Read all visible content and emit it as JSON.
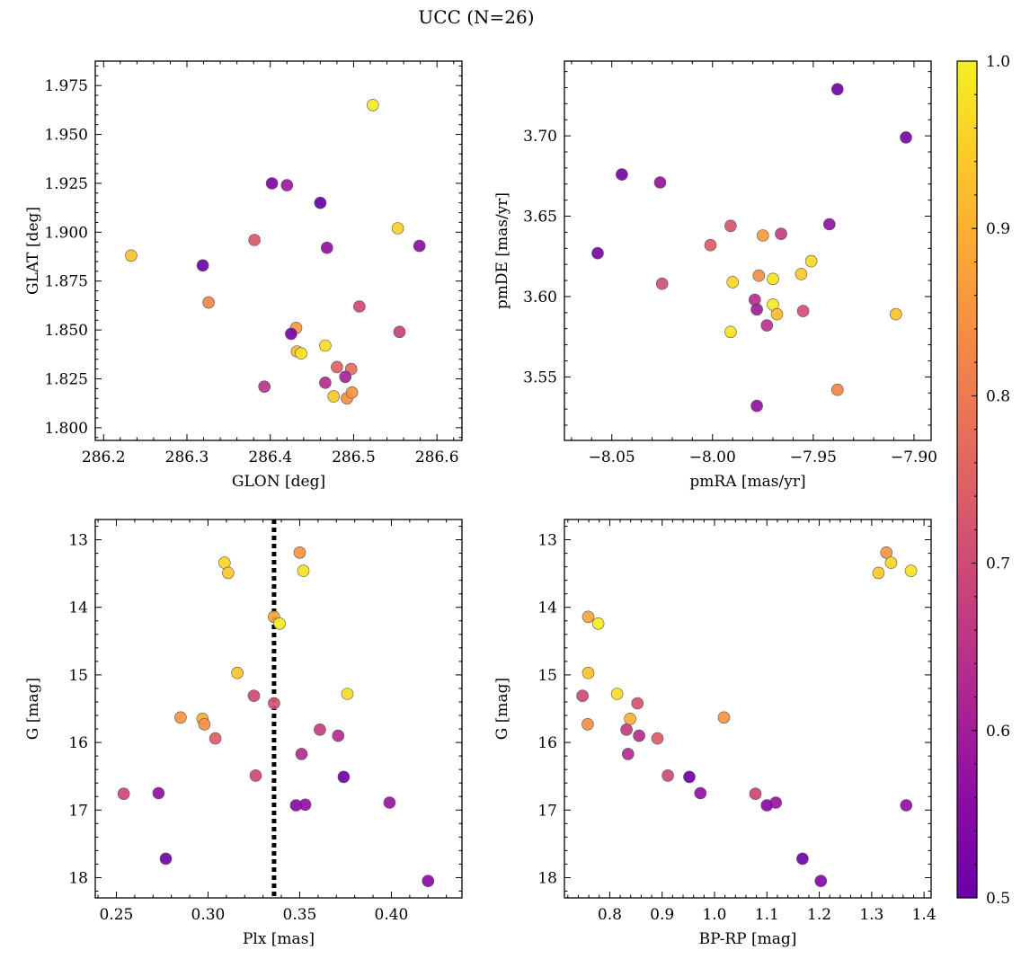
{
  "title": "UCC (N=26)",
  "colorbar": {
    "range": [
      0.5,
      1.0
    ],
    "ticks": [
      0.5,
      0.6,
      0.7,
      0.8,
      0.9,
      1.0
    ],
    "ticklabels": [
      "0.5",
      "0.6",
      "0.7",
      "0.8",
      "0.9",
      "1.0"
    ],
    "colormap": "plasma"
  },
  "chart_data": [
    {
      "type": "scatter",
      "xlabel": "GLON [deg]",
      "ylabel": "GLAT [deg]",
      "xlim": [
        286.19,
        286.63
      ],
      "ylim": [
        1.7935,
        1.9875
      ],
      "xticks": [
        286.2,
        286.3,
        286.4,
        286.5,
        286.6
      ],
      "xticklabels": [
        "286.2",
        "286.3",
        "286.4",
        "286.5",
        "286.6"
      ],
      "yticks": [
        1.8,
        1.825,
        1.85,
        1.875,
        1.9,
        1.925,
        1.95,
        1.975
      ],
      "yticklabels": [
        "1.800",
        "1.825",
        "1.850",
        "1.875",
        "1.900",
        "1.925",
        "1.950",
        "1.975"
      ],
      "points": [
        {
          "x": 286.523,
          "y": 1.965,
          "c": 0.99
        },
        {
          "x": 286.402,
          "y": 1.925,
          "c": 0.53
        },
        {
          "x": 286.42,
          "y": 1.924,
          "c": 0.59
        },
        {
          "x": 286.46,
          "y": 1.915,
          "c": 0.5
        },
        {
          "x": 286.233,
          "y": 1.888,
          "c": 0.93
        },
        {
          "x": 286.319,
          "y": 1.883,
          "c": 0.51
        },
        {
          "x": 286.381,
          "y": 1.896,
          "c": 0.73
        },
        {
          "x": 286.468,
          "y": 1.892,
          "c": 0.57
        },
        {
          "x": 286.553,
          "y": 1.902,
          "c": 0.95
        },
        {
          "x": 286.579,
          "y": 1.893,
          "c": 0.56
        },
        {
          "x": 286.326,
          "y": 1.864,
          "c": 0.82
        },
        {
          "x": 286.507,
          "y": 1.862,
          "c": 0.7
        },
        {
          "x": 286.431,
          "y": 1.851,
          "c": 0.86
        },
        {
          "x": 286.425,
          "y": 1.848,
          "c": 0.52
        },
        {
          "x": 286.555,
          "y": 1.849,
          "c": 0.68
        },
        {
          "x": 286.432,
          "y": 1.839,
          "c": 0.91
        },
        {
          "x": 286.437,
          "y": 1.838,
          "c": 0.98
        },
        {
          "x": 286.466,
          "y": 1.842,
          "c": 0.97
        },
        {
          "x": 286.48,
          "y": 1.831,
          "c": 0.75
        },
        {
          "x": 286.497,
          "y": 1.83,
          "c": 0.77
        },
        {
          "x": 286.466,
          "y": 1.823,
          "c": 0.63
        },
        {
          "x": 286.49,
          "y": 1.826,
          "c": 0.61
        },
        {
          "x": 286.393,
          "y": 1.821,
          "c": 0.65
        },
        {
          "x": 286.476,
          "y": 1.816,
          "c": 0.94
        },
        {
          "x": 286.492,
          "y": 1.815,
          "c": 0.84
        },
        {
          "x": 286.498,
          "y": 1.818,
          "c": 0.85
        }
      ]
    },
    {
      "type": "scatter",
      "xlabel": "pmRA [mas/yr]",
      "ylabel": "pmDE [mas/yr]",
      "xlim": [
        -8.0735,
        -7.8915
      ],
      "ylim": [
        3.5105,
        3.7465
      ],
      "xticks": [
        -8.05,
        -8.0,
        -7.95,
        -7.9
      ],
      "xticklabels": [
        "−8.05",
        "−8.00",
        "−7.95",
        "−7.90"
      ],
      "yticks": [
        3.55,
        3.6,
        3.65,
        3.7
      ],
      "yticklabels": [
        "3.55",
        "3.60",
        "3.65",
        "3.70"
      ],
      "points": [
        {
          "x": -7.938,
          "y": 3.729,
          "c": 0.51
        },
        {
          "x": -7.904,
          "y": 3.699,
          "c": 0.53
        },
        {
          "x": -8.045,
          "y": 3.676,
          "c": 0.52
        },
        {
          "x": -8.026,
          "y": 3.671,
          "c": 0.58
        },
        {
          "x": -7.942,
          "y": 3.645,
          "c": 0.57
        },
        {
          "x": -7.991,
          "y": 3.644,
          "c": 0.72
        },
        {
          "x": -7.966,
          "y": 3.639,
          "c": 0.67
        },
        {
          "x": -7.975,
          "y": 3.638,
          "c": 0.86
        },
        {
          "x": -8.001,
          "y": 3.632,
          "c": 0.74
        },
        {
          "x": -8.057,
          "y": 3.627,
          "c": 0.53
        },
        {
          "x": -7.951,
          "y": 3.622,
          "c": 0.96
        },
        {
          "x": -7.956,
          "y": 3.614,
          "c": 0.94
        },
        {
          "x": -7.977,
          "y": 3.613,
          "c": 0.84
        },
        {
          "x": -7.97,
          "y": 3.611,
          "c": 0.98
        },
        {
          "x": -7.99,
          "y": 3.609,
          "c": 0.96
        },
        {
          "x": -8.025,
          "y": 3.608,
          "c": 0.71
        },
        {
          "x": -7.979,
          "y": 3.598,
          "c": 0.64
        },
        {
          "x": -7.978,
          "y": 3.592,
          "c": 0.6
        },
        {
          "x": -7.97,
          "y": 3.595,
          "c": 0.99
        },
        {
          "x": -7.968,
          "y": 3.589,
          "c": 0.92
        },
        {
          "x": -7.955,
          "y": 3.591,
          "c": 0.71
        },
        {
          "x": -7.973,
          "y": 3.582,
          "c": 0.65
        },
        {
          "x": -7.909,
          "y": 3.589,
          "c": 0.93
        },
        {
          "x": -7.991,
          "y": 3.578,
          "c": 0.98
        },
        {
          "x": -7.938,
          "y": 3.542,
          "c": 0.82
        },
        {
          "x": -7.978,
          "y": 3.532,
          "c": 0.57
        }
      ]
    },
    {
      "type": "scatter",
      "xlabel": "Plx [mas]",
      "ylabel": "G [mag]",
      "xlim": [
        0.2385,
        0.4385
      ],
      "ylim": [
        18.3,
        12.7
      ],
      "y_inverted": true,
      "xticks": [
        0.25,
        0.3,
        0.35,
        0.4
      ],
      "xticklabels": [
        "0.25",
        "0.30",
        "0.35",
        "0.40"
      ],
      "yticks": [
        13,
        14,
        15,
        16,
        17,
        18
      ],
      "yticklabels": [
        "13",
        "14",
        "15",
        "16",
        "17",
        "18"
      ],
      "vline": {
        "x": 0.336,
        "style": "dotted",
        "color": "#000000"
      },
      "points": [
        {
          "x": 0.35,
          "y": 13.19,
          "c": 0.85
        },
        {
          "x": 0.309,
          "y": 13.34,
          "c": 0.96
        },
        {
          "x": 0.311,
          "y": 13.49,
          "c": 0.94
        },
        {
          "x": 0.352,
          "y": 13.46,
          "c": 0.98
        },
        {
          "x": 0.336,
          "y": 14.14,
          "c": 0.88
        },
        {
          "x": 0.339,
          "y": 14.24,
          "c": 0.99
        },
        {
          "x": 0.316,
          "y": 14.97,
          "c": 0.93
        },
        {
          "x": 0.376,
          "y": 15.28,
          "c": 0.97
        },
        {
          "x": 0.325,
          "y": 15.31,
          "c": 0.7
        },
        {
          "x": 0.336,
          "y": 15.42,
          "c": 0.72
        },
        {
          "x": 0.285,
          "y": 15.63,
          "c": 0.85
        },
        {
          "x": 0.297,
          "y": 15.65,
          "c": 0.9
        },
        {
          "x": 0.298,
          "y": 15.73,
          "c": 0.84
        },
        {
          "x": 0.361,
          "y": 15.81,
          "c": 0.67
        },
        {
          "x": 0.371,
          "y": 15.9,
          "c": 0.63
        },
        {
          "x": 0.304,
          "y": 15.94,
          "c": 0.74
        },
        {
          "x": 0.351,
          "y": 16.17,
          "c": 0.63
        },
        {
          "x": 0.326,
          "y": 16.49,
          "c": 0.7
        },
        {
          "x": 0.374,
          "y": 16.51,
          "c": 0.51
        },
        {
          "x": 0.254,
          "y": 16.76,
          "c": 0.69
        },
        {
          "x": 0.273,
          "y": 16.75,
          "c": 0.57
        },
        {
          "x": 0.399,
          "y": 16.89,
          "c": 0.58
        },
        {
          "x": 0.348,
          "y": 16.93,
          "c": 0.55
        },
        {
          "x": 0.353,
          "y": 16.92,
          "c": 0.57
        },
        {
          "x": 0.277,
          "y": 17.72,
          "c": 0.51
        },
        {
          "x": 0.42,
          "y": 18.05,
          "c": 0.55
        }
      ]
    },
    {
      "type": "scatter",
      "xlabel": "BP-RP [mag]",
      "ylabel": "G [mag]",
      "xlim": [
        0.7135,
        1.4135
      ],
      "ylim": [
        18.3,
        12.7
      ],
      "y_inverted": true,
      "xticks": [
        0.8,
        0.9,
        1.0,
        1.1,
        1.2,
        1.3,
        1.4
      ],
      "xticklabels": [
        "0.8",
        "0.9",
        "1.0",
        "1.1",
        "1.2",
        "1.3",
        "1.4"
      ],
      "yticks": [
        13,
        14,
        15,
        16,
        17,
        18
      ],
      "yticklabels": [
        "13",
        "14",
        "15",
        "16",
        "17",
        "18"
      ],
      "points": [
        {
          "x": 1.328,
          "y": 13.19,
          "c": 0.85
        },
        {
          "x": 1.337,
          "y": 13.34,
          "c": 0.96
        },
        {
          "x": 1.313,
          "y": 13.49,
          "c": 0.94
        },
        {
          "x": 1.375,
          "y": 13.46,
          "c": 0.98
        },
        {
          "x": 0.759,
          "y": 14.14,
          "c": 0.88
        },
        {
          "x": 0.778,
          "y": 14.24,
          "c": 0.99
        },
        {
          "x": 0.759,
          "y": 14.97,
          "c": 0.93
        },
        {
          "x": 0.814,
          "y": 15.28,
          "c": 0.97
        },
        {
          "x": 0.748,
          "y": 15.31,
          "c": 0.7
        },
        {
          "x": 0.853,
          "y": 15.42,
          "c": 0.72
        },
        {
          "x": 1.018,
          "y": 15.63,
          "c": 0.85
        },
        {
          "x": 0.839,
          "y": 15.65,
          "c": 0.9
        },
        {
          "x": 0.758,
          "y": 15.73,
          "c": 0.84
        },
        {
          "x": 0.832,
          "y": 15.81,
          "c": 0.67
        },
        {
          "x": 0.856,
          "y": 15.9,
          "c": 0.63
        },
        {
          "x": 0.891,
          "y": 15.94,
          "c": 0.74
        },
        {
          "x": 0.835,
          "y": 16.17,
          "c": 0.63
        },
        {
          "x": 0.911,
          "y": 16.49,
          "c": 0.7
        },
        {
          "x": 0.952,
          "y": 16.51,
          "c": 0.51
        },
        {
          "x": 1.078,
          "y": 16.76,
          "c": 0.69
        },
        {
          "x": 0.973,
          "y": 16.75,
          "c": 0.57
        },
        {
          "x": 1.117,
          "y": 16.89,
          "c": 0.58
        },
        {
          "x": 1.1,
          "y": 16.93,
          "c": 0.55
        },
        {
          "x": 1.366,
          "y": 16.93,
          "c": 0.57
        },
        {
          "x": 1.168,
          "y": 17.72,
          "c": 0.51
        },
        {
          "x": 1.203,
          "y": 18.05,
          "c": 0.55
        }
      ]
    }
  ]
}
